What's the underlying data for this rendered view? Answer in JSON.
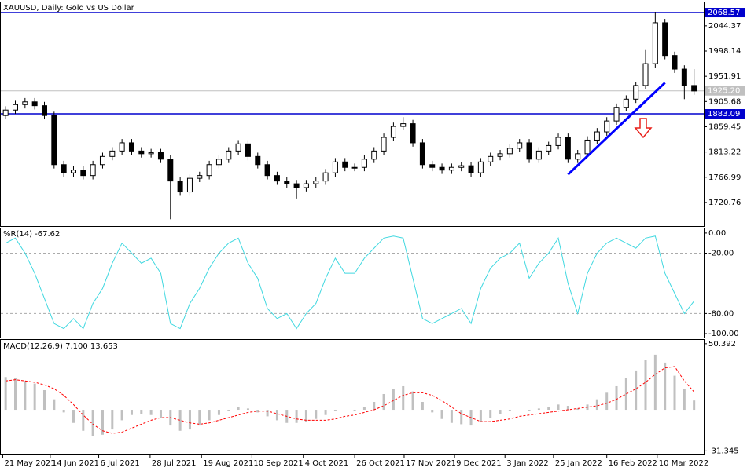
{
  "chart_data": [
    {
      "type": "candlestick",
      "title": "XAUUSD, Daily:  Gold vs US Dollar",
      "color": "#000000",
      "xlim": [
        -0.5,
        72
      ],
      "ohlc": [
        [
          1880,
          1897,
          1873,
          1890
        ],
        [
          1890,
          1907,
          1883,
          1900
        ],
        [
          1900,
          1912,
          1893,
          1905
        ],
        [
          1905,
          1912,
          1891,
          1898
        ],
        [
          1898,
          1905,
          1873,
          1880
        ],
        [
          1880,
          1887,
          1783,
          1790
        ],
        [
          1790,
          1797,
          1768,
          1775
        ],
        [
          1775,
          1787,
          1768,
          1780
        ],
        [
          1780,
          1787,
          1763,
          1770
        ],
        [
          1770,
          1797,
          1763,
          1790
        ],
        [
          1790,
          1812,
          1783,
          1805
        ],
        [
          1805,
          1822,
          1798,
          1815
        ],
        [
          1815,
          1837,
          1808,
          1830
        ],
        [
          1830,
          1837,
          1808,
          1815
        ],
        [
          1815,
          1822,
          1803,
          1810
        ],
        [
          1810,
          1819,
          1803,
          1812
        ],
        [
          1812,
          1819,
          1793,
          1800
        ],
        [
          1800,
          1807,
          1690,
          1760
        ],
        [
          1760,
          1767,
          1733,
          1740
        ],
        [
          1740,
          1772,
          1733,
          1765
        ],
        [
          1765,
          1777,
          1758,
          1770
        ],
        [
          1770,
          1797,
          1763,
          1790
        ],
        [
          1790,
          1807,
          1783,
          1800
        ],
        [
          1800,
          1822,
          1793,
          1815
        ],
        [
          1815,
          1835,
          1808,
          1828
        ],
        [
          1828,
          1835,
          1798,
          1805
        ],
        [
          1805,
          1812,
          1783,
          1790
        ],
        [
          1790,
          1797,
          1763,
          1770
        ],
        [
          1770,
          1777,
          1753,
          1760
        ],
        [
          1760,
          1767,
          1748,
          1755
        ],
        [
          1755,
          1762,
          1728,
          1748
        ],
        [
          1748,
          1762,
          1741,
          1755
        ],
        [
          1755,
          1767,
          1748,
          1760
        ],
        [
          1760,
          1782,
          1753,
          1775
        ],
        [
          1775,
          1802,
          1768,
          1795
        ],
        [
          1795,
          1802,
          1778,
          1785
        ],
        [
          1785,
          1792,
          1778,
          1785
        ],
        [
          1785,
          1807,
          1778,
          1800
        ],
        [
          1800,
          1822,
          1793,
          1815
        ],
        [
          1815,
          1847,
          1808,
          1840
        ],
        [
          1840,
          1867,
          1833,
          1860
        ],
        [
          1860,
          1877,
          1853,
          1865
        ],
        [
          1865,
          1872,
          1823,
          1830
        ],
        [
          1830,
          1837,
          1783,
          1790
        ],
        [
          1790,
          1797,
          1778,
          1785
        ],
        [
          1785,
          1792,
          1773,
          1780
        ],
        [
          1780,
          1792,
          1773,
          1785
        ],
        [
          1785,
          1795,
          1778,
          1788
        ],
        [
          1788,
          1795,
          1768,
          1775
        ],
        [
          1775,
          1802,
          1768,
          1795
        ],
        [
          1795,
          1812,
          1788,
          1805
        ],
        [
          1805,
          1817,
          1798,
          1810
        ],
        [
          1810,
          1827,
          1803,
          1820
        ],
        [
          1820,
          1837,
          1813,
          1830
        ],
        [
          1830,
          1837,
          1793,
          1800
        ],
        [
          1800,
          1822,
          1793,
          1815
        ],
        [
          1815,
          1832,
          1808,
          1825
        ],
        [
          1825,
          1847,
          1818,
          1840
        ],
        [
          1840,
          1847,
          1793,
          1800
        ],
        [
          1800,
          1817,
          1793,
          1810
        ],
        [
          1810,
          1842,
          1803,
          1835
        ],
        [
          1835,
          1857,
          1828,
          1850
        ],
        [
          1850,
          1877,
          1843,
          1870
        ],
        [
          1870,
          1902,
          1863,
          1895
        ],
        [
          1895,
          1917,
          1888,
          1910
        ],
        [
          1910,
          1942,
          1903,
          1935
        ],
        [
          1935,
          2000,
          1928,
          1975
        ],
        [
          1975,
          2070,
          1968,
          2050
        ],
        [
          2050,
          2057,
          1983,
          1990
        ],
        [
          1990,
          1997,
          1958,
          1965
        ],
        [
          1965,
          1972,
          1910,
          1935
        ],
        [
          1935,
          1965,
          1918,
          1925
        ]
      ],
      "ylim": [
        1677.5,
        2087.3
      ],
      "yticks": [
        2044.37,
        1998.14,
        1951.91,
        1905.68,
        1859.45,
        1813.22,
        1766.99,
        1720.76
      ],
      "hlines": [
        2068.57,
        1883.09
      ],
      "hline_color": "#0000cd",
      "last_price": {
        "value": 1925.2,
        "label": "1925.20"
      },
      "trend_line": {
        "x": [
          58,
          68
        ],
        "y": [
          1772,
          1940
        ],
        "color": "#0000ff"
      }
    },
    {
      "type": "line",
      "title": "%R(14) -67.62",
      "color": "#40d8e0",
      "xlim": [
        -0.5,
        72
      ],
      "values": [
        -10,
        -5,
        -20,
        -40,
        -65,
        -90,
        -95,
        -85,
        -95,
        -70,
        -55,
        -30,
        -10,
        -20,
        -30,
        -25,
        -40,
        -90,
        -95,
        -70,
        -55,
        -35,
        -20,
        -10,
        -5,
        -30,
        -45,
        -75,
        -85,
        -80,
        -95,
        -80,
        -70,
        -45,
        -25,
        -40,
        -40,
        -25,
        -15,
        -5,
        -3,
        -5,
        -45,
        -85,
        -90,
        -85,
        -80,
        -75,
        -90,
        -55,
        -35,
        -25,
        -20,
        -10,
        -45,
        -30,
        -20,
        -5,
        -50,
        -80,
        -40,
        -20,
        -10,
        -5,
        -10,
        -15,
        -5,
        -3,
        -40,
        -60,
        -80,
        -67.62
      ],
      "ylim": [
        -103.9,
        4.6
      ],
      "yticks": [
        {
          "value": 0,
          "label": "0.00"
        },
        {
          "value": -20,
          "label": "-20.00"
        },
        {
          "value": -80,
          "label": "-80.00"
        },
        {
          "value": -100,
          "label": "-100.00"
        }
      ]
    },
    {
      "type": "macd",
      "title": "MACD(12,26,9) 7.100 13.653",
      "xlim": [
        -0.5,
        72
      ],
      "series": [
        {
          "color": "#c0c0c0",
          "values": [
            25,
            24,
            22,
            20,
            15,
            8,
            -2,
            -10,
            -16,
            -20,
            -19,
            -15,
            -8,
            -4,
            -3,
            -4,
            -6,
            -12,
            -16,
            -15,
            -12,
            -8,
            -4,
            -1,
            2,
            1,
            -2,
            -5,
            -8,
            -10,
            -10,
            -9,
            -7,
            -4,
            -1,
            0,
            -1,
            2,
            6,
            12,
            16,
            18,
            14,
            6,
            -2,
            -7,
            -10,
            -11,
            -12,
            -9,
            -6,
            -3,
            -1,
            0,
            -1,
            1,
            2,
            4,
            3,
            1,
            4,
            8,
            13,
            18,
            24,
            30,
            38,
            42,
            36,
            26,
            16,
            7.1
          ]
        },
        {
          "color": "#ff0000",
          "values": [
            22,
            23,
            22,
            21,
            19,
            16,
            11,
            4,
            -4,
            -11,
            -16,
            -18,
            -17,
            -14,
            -11,
            -8,
            -6,
            -6,
            -8,
            -10,
            -11,
            -10,
            -8,
            -6,
            -4,
            -2,
            -1,
            -1,
            -3,
            -5,
            -7,
            -8,
            -8,
            -8,
            -7,
            -5,
            -4,
            -2,
            0,
            3,
            7,
            11,
            13,
            13,
            11,
            7,
            2,
            -3,
            -6,
            -9,
            -9,
            -8,
            -7,
            -5,
            -4,
            -3,
            -2,
            -1,
            0,
            1,
            2,
            3,
            5,
            8,
            12,
            16,
            21,
            27,
            32,
            33,
            22,
            13.653
          ]
        }
      ],
      "ylim": [
        -33.5,
        53.3
      ],
      "yticks": [
        50.392,
        -31.345
      ],
      "xticks": [
        {
          "value": -0.3,
          "label": "21 May 2021"
        },
        {
          "value": 4.6,
          "label": "14 Jun 2021"
        },
        {
          "value": 9.6,
          "label": "6 Jul 2021"
        },
        {
          "value": 14.9,
          "label": "28 Jul 2021"
        },
        {
          "value": 20.2,
          "label": "19 Aug 2021"
        },
        {
          "value": 25.4,
          "label": "10 Sep 2021"
        },
        {
          "value": 30.7,
          "label": "4 Oct 2021"
        },
        {
          "value": 36,
          "label": "26 Oct 2021"
        },
        {
          "value": 41.1,
          "label": "17 Nov 2021"
        },
        {
          "value": 46.3,
          "label": "9 Dec 2021"
        },
        {
          "value": 51.5,
          "label": "3 Jan 2022"
        },
        {
          "value": 56.5,
          "label": "25 Jan 2022"
        },
        {
          "value": 62,
          "label": "16 Feb 2022"
        },
        {
          "value": 67.2,
          "label": "10 Mar 2022"
        }
      ]
    }
  ]
}
